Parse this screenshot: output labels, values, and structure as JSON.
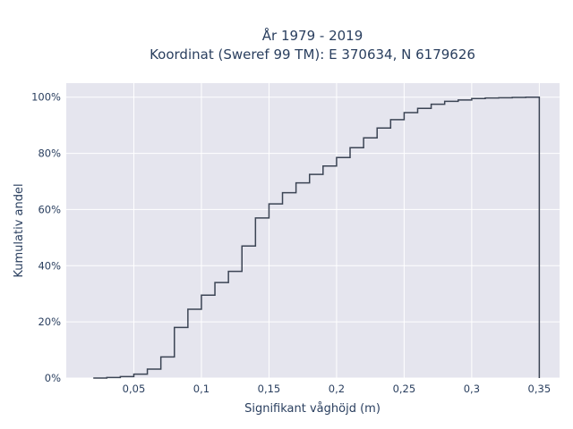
{
  "chart_data": {
    "type": "line",
    "line_shape": "step",
    "title_lines": [
      "År 1979 - 2019",
      "Koordinat (Sweref 99 TM): E 370634, N 6179626"
    ],
    "xlabel": "Signifikant våghöjd (m)",
    "ylabel": "Kumulativ andel",
    "xlim": [
      0.0,
      0.365
    ],
    "ylim": [
      0,
      1.05
    ],
    "x_ticks": [
      {
        "value": 0.05,
        "label": "0,05"
      },
      {
        "value": 0.1,
        "label": "0,1"
      },
      {
        "value": 0.15,
        "label": "0,15"
      },
      {
        "value": 0.2,
        "label": "0,2"
      },
      {
        "value": 0.25,
        "label": "0,25"
      },
      {
        "value": 0.3,
        "label": "0,3"
      },
      {
        "value": 0.35,
        "label": "0,35"
      }
    ],
    "y_ticks": [
      {
        "value": 0,
        "label": "0%"
      },
      {
        "value": 0.2,
        "label": "20%"
      },
      {
        "value": 0.4,
        "label": "40%"
      },
      {
        "value": 0.6,
        "label": "60%"
      },
      {
        "value": 0.8,
        "label": "80%"
      },
      {
        "value": 1.0,
        "label": "100%"
      }
    ],
    "grid": true,
    "colors": {
      "background": "#e5e5ee",
      "grid": "#ffffff",
      "line": "#3b4454",
      "text": "#2a3f5f"
    },
    "series": [
      {
        "x": [
          0.02,
          0.03,
          0.04,
          0.05,
          0.06,
          0.07,
          0.08,
          0.09,
          0.1,
          0.11,
          0.12,
          0.13,
          0.14,
          0.15,
          0.16,
          0.17,
          0.18,
          0.19,
          0.2,
          0.21,
          0.22,
          0.23,
          0.24,
          0.25,
          0.26,
          0.27,
          0.28,
          0.29,
          0.3,
          0.31,
          0.32,
          0.33,
          0.34,
          0.35
        ],
        "y": [
          0.0,
          0.002,
          0.005,
          0.014,
          0.032,
          0.075,
          0.18,
          0.245,
          0.295,
          0.34,
          0.38,
          0.47,
          0.57,
          0.62,
          0.66,
          0.695,
          0.725,
          0.755,
          0.785,
          0.82,
          0.855,
          0.89,
          0.92,
          0.945,
          0.96,
          0.975,
          0.985,
          0.99,
          0.995,
          0.997,
          0.998,
          0.999,
          1.0,
          0.0
        ]
      }
    ]
  }
}
